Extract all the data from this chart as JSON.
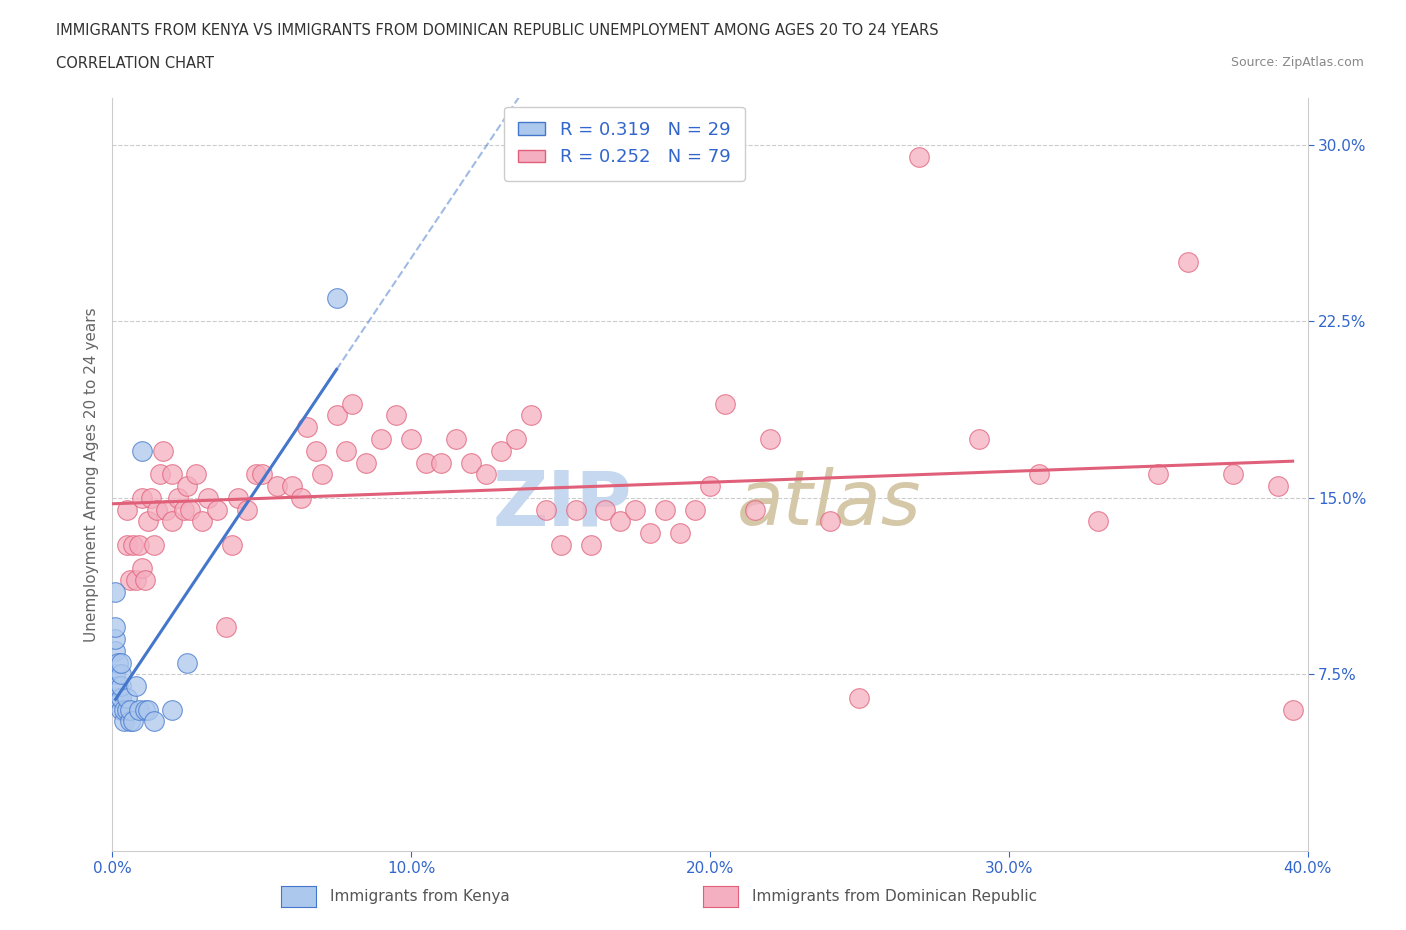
{
  "title_line1": "IMMIGRANTS FROM KENYA VS IMMIGRANTS FROM DOMINICAN REPUBLIC UNEMPLOYMENT AMONG AGES 20 TO 24 YEARS",
  "title_line2": "CORRELATION CHART",
  "source_text": "Source: ZipAtlas.com",
  "ylabel": "Unemployment Among Ages 20 to 24 years",
  "legend_label_kenya": "Immigrants from Kenya",
  "legend_label_dr": "Immigrants from Dominican Republic",
  "R_kenya": 0.319,
  "N_kenya": 29,
  "R_dr": 0.252,
  "N_dr": 79,
  "color_kenya": "#adc8ed",
  "color_dr": "#f4afc0",
  "trendline_kenya_color": "#4477cc",
  "trendline_dr_color": "#e0607a",
  "xmin": 0.0,
  "xmax": 0.4,
  "ymin": 0.0,
  "ymax": 0.32,
  "yticks": [
    0.075,
    0.15,
    0.225,
    0.3
  ],
  "xticks": [
    0.0,
    0.1,
    0.2,
    0.3,
    0.4
  ],
  "kenya_x": [
    0.001,
    0.001,
    0.001,
    0.001,
    0.001,
    0.002,
    0.002,
    0.002,
    0.003,
    0.003,
    0.003,
    0.003,
    0.003,
    0.004,
    0.004,
    0.005,
    0.005,
    0.006,
    0.006,
    0.007,
    0.008,
    0.009,
    0.01,
    0.011,
    0.012,
    0.014,
    0.02,
    0.025,
    0.075
  ],
  "kenya_y": [
    0.075,
    0.085,
    0.09,
    0.095,
    0.11,
    0.065,
    0.07,
    0.08,
    0.06,
    0.065,
    0.07,
    0.075,
    0.08,
    0.055,
    0.06,
    0.06,
    0.065,
    0.055,
    0.06,
    0.055,
    0.07,
    0.06,
    0.17,
    0.06,
    0.06,
    0.055,
    0.06,
    0.08,
    0.235
  ],
  "dr_x": [
    0.005,
    0.005,
    0.006,
    0.007,
    0.008,
    0.009,
    0.01,
    0.01,
    0.011,
    0.012,
    0.013,
    0.014,
    0.015,
    0.016,
    0.017,
    0.018,
    0.02,
    0.02,
    0.022,
    0.024,
    0.025,
    0.026,
    0.028,
    0.03,
    0.032,
    0.035,
    0.038,
    0.04,
    0.042,
    0.045,
    0.048,
    0.05,
    0.055,
    0.06,
    0.063,
    0.065,
    0.068,
    0.07,
    0.075,
    0.078,
    0.08,
    0.085,
    0.09,
    0.095,
    0.1,
    0.105,
    0.11,
    0.115,
    0.12,
    0.125,
    0.13,
    0.135,
    0.14,
    0.145,
    0.15,
    0.155,
    0.16,
    0.165,
    0.17,
    0.175,
    0.18,
    0.185,
    0.19,
    0.195,
    0.2,
    0.205,
    0.215,
    0.22,
    0.24,
    0.25,
    0.27,
    0.29,
    0.31,
    0.33,
    0.35,
    0.36,
    0.375,
    0.39,
    0.395
  ],
  "dr_y": [
    0.13,
    0.145,
    0.115,
    0.13,
    0.115,
    0.13,
    0.12,
    0.15,
    0.115,
    0.14,
    0.15,
    0.13,
    0.145,
    0.16,
    0.17,
    0.145,
    0.14,
    0.16,
    0.15,
    0.145,
    0.155,
    0.145,
    0.16,
    0.14,
    0.15,
    0.145,
    0.095,
    0.13,
    0.15,
    0.145,
    0.16,
    0.16,
    0.155,
    0.155,
    0.15,
    0.18,
    0.17,
    0.16,
    0.185,
    0.17,
    0.19,
    0.165,
    0.175,
    0.185,
    0.175,
    0.165,
    0.165,
    0.175,
    0.165,
    0.16,
    0.17,
    0.175,
    0.185,
    0.145,
    0.13,
    0.145,
    0.13,
    0.145,
    0.14,
    0.145,
    0.135,
    0.145,
    0.135,
    0.145,
    0.155,
    0.19,
    0.145,
    0.175,
    0.14,
    0.065,
    0.295,
    0.175,
    0.16,
    0.14,
    0.16,
    0.25,
    0.16,
    0.155,
    0.06
  ]
}
